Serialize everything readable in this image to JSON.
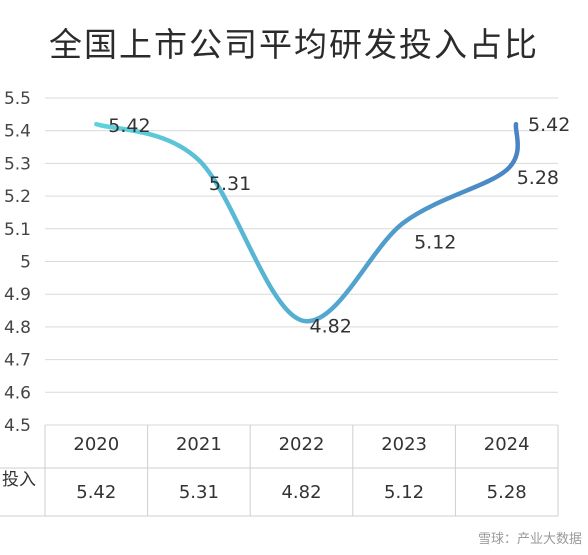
{
  "chart_data": {
    "type": "line",
    "title": "全国上市公司平均研发投入占比",
    "categories": [
      "2020",
      "2021",
      "2022",
      "2023",
      "2024"
    ],
    "series": [
      {
        "name": "投入",
        "values": [
          5.42,
          5.31,
          4.82,
          5.12,
          5.28
        ]
      }
    ],
    "line_end_value": 5.42,
    "line_end_label": "5.42",
    "y_ticks": [
      "5.5",
      "5.4",
      "5.3",
      "5.2",
      "5.1",
      "5",
      "4.9",
      "4.8",
      "4.7",
      "4.6",
      "4.5"
    ],
    "ylim": [
      4.5,
      5.5
    ],
    "grid": true,
    "legend": "none",
    "data_table": {
      "row_label": "投入",
      "cells": [
        "5.42",
        "5.31",
        "4.82",
        "5.12",
        "5.28"
      ]
    },
    "colors": {
      "line_start": "#5fd3dc",
      "line_end": "#4a84c4",
      "grid": "#d9d9d9"
    }
  },
  "watermark": "雪球：产业大数据"
}
